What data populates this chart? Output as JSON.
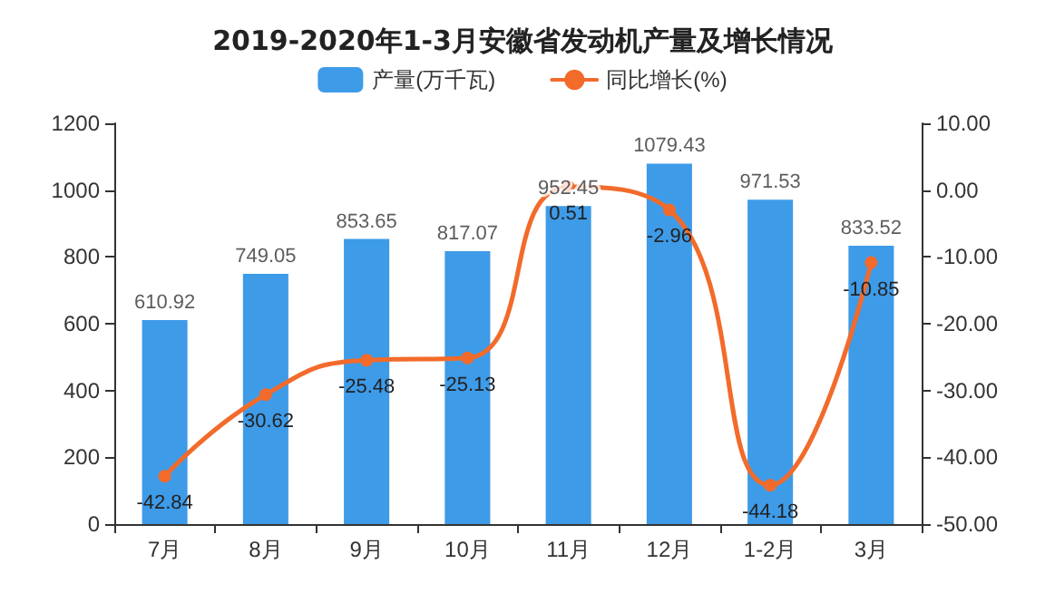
{
  "chart_data": {
    "type": "bar",
    "title": "2019-2020年1-3月安徽省发动机产量及增长情况",
    "categories": [
      "7月",
      "8月",
      "9月",
      "10月",
      "11月",
      "12月",
      "1-2月",
      "3月"
    ],
    "series": [
      {
        "name": "产量(万千瓦)",
        "color": "#3e9be8",
        "values": [
          610.92,
          749.05,
          853.65,
          817.07,
          952.45,
          1079.43,
          971.53,
          833.52
        ]
      },
      {
        "name": "同比增长(%)",
        "type": "line",
        "axis": "y2",
        "color": "#f26b2b",
        "values": [
          -42.84,
          -30.62,
          -25.48,
          -25.13,
          0.51,
          -2.96,
          -44.18,
          -10.85
        ]
      }
    ],
    "ylim": [
      0,
      1200
    ],
    "yticks": [
      0,
      200,
      400,
      600,
      800,
      1000,
      1200
    ],
    "y2lim": [
      -50,
      10
    ],
    "y2ticks": [
      {
        "value": -50,
        "label": "-50.00"
      },
      {
        "value": -40,
        "label": "-40.00"
      },
      {
        "value": -30,
        "label": "-30.00"
      },
      {
        "value": -20,
        "label": "-20.00"
      },
      {
        "value": -10,
        "label": "-10.00"
      },
      {
        "value": 0,
        "label": "0.00"
      },
      {
        "value": 10,
        "label": "10.00"
      }
    ],
    "data_labels": true,
    "legend": "top",
    "grid": false,
    "marker": "circle",
    "line_style": "solid"
  }
}
